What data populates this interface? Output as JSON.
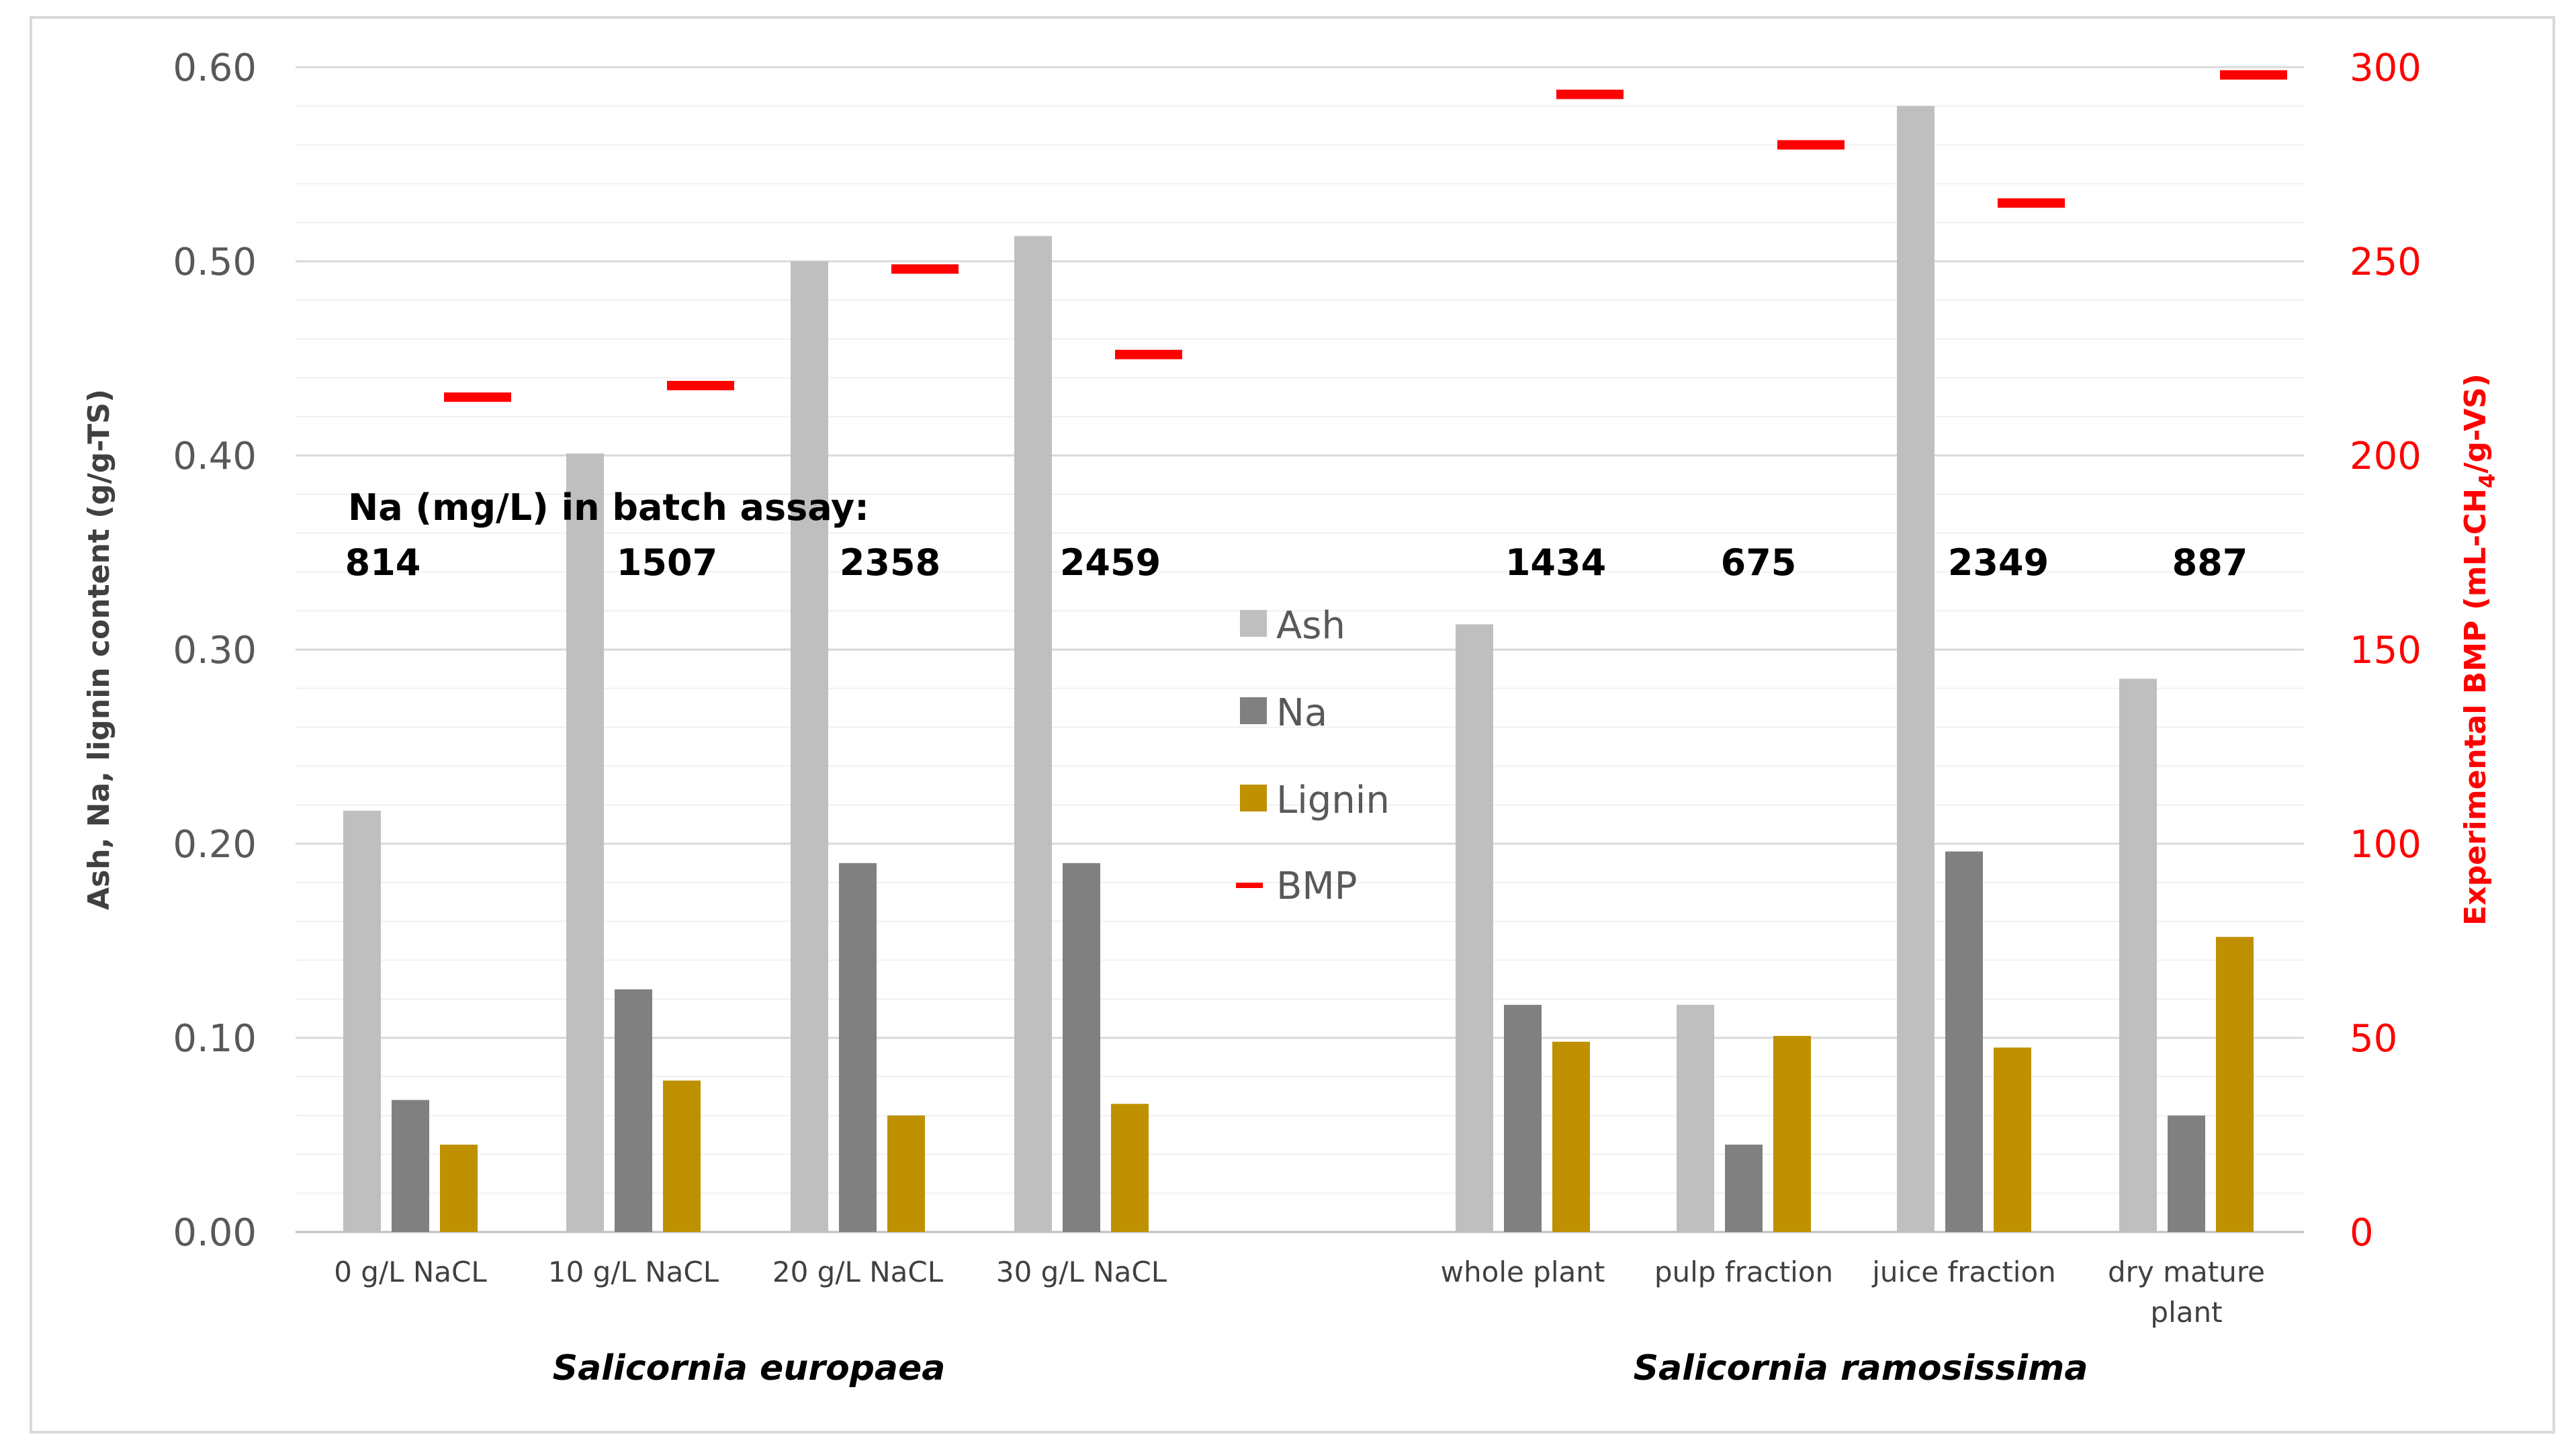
{
  "chart_data": {
    "type": "bar",
    "categories": [
      "0 g/L NaCL",
      "10 g/L NaCL",
      "20 g/L NaCL",
      "30 g/L NaCL",
      "whole plant",
      "pulp fraction",
      "juice fraction",
      "dry mature plant"
    ],
    "category_lines": [
      [
        "0 g/L NaCL"
      ],
      [
        "10 g/L NaCL"
      ],
      [
        "20 g/L NaCL"
      ],
      [
        "30 g/L NaCL"
      ],
      [
        "whole plant"
      ],
      [
        "pulp fraction"
      ],
      [
        "juice fraction"
      ],
      [
        "dry mature",
        "plant"
      ]
    ],
    "series": [
      {
        "name": "Ash",
        "color": "#bfbfbf",
        "values": [
          0.217,
          0.401,
          0.5,
          0.513,
          0.313,
          0.117,
          0.58,
          0.285
        ]
      },
      {
        "name": "Na",
        "color": "#808080",
        "values": [
          0.068,
          0.125,
          0.19,
          0.19,
          0.117,
          0.045,
          0.196,
          0.06
        ]
      },
      {
        "name": "Lignin",
        "color": "#bf9000",
        "values": [
          0.045,
          0.078,
          0.06,
          0.066,
          0.098,
          0.101,
          0.095,
          0.152
        ]
      }
    ],
    "secondary_series": {
      "name": "BMP",
      "color": "#ff0000",
      "marker": "dash",
      "values": [
        215,
        218,
        248,
        226,
        293,
        280,
        265,
        298
      ]
    },
    "na_annotation": {
      "title": "Na (mg/L) in batch assay:",
      "values": [
        "814",
        "1507",
        "2358",
        "2459",
        "1434",
        "675",
        "2349",
        "887"
      ]
    },
    "groups": [
      {
        "label": "Salicornia europaea",
        "categories": [
          0,
          1,
          2,
          3
        ]
      },
      {
        "label": "Salicornia ramosissima",
        "categories": [
          4,
          5,
          6,
          7
        ]
      }
    ],
    "ylabel": "Ash, Na, lignin content (g/g-TS)",
    "ylabel_right_parts": [
      "Experimental BMP (mL-CH",
      "4",
      "/g-VS)"
    ],
    "ylim": [
      0,
      0.6
    ],
    "yticks": [
      "0.00",
      "0.10",
      "0.20",
      "0.30",
      "0.40",
      "0.50",
      "0.60"
    ],
    "ylim_right": [
      0,
      300
    ],
    "yticks_right": [
      "0",
      "50",
      "100",
      "150",
      "200",
      "250",
      "300"
    ],
    "grid": true,
    "legend_position": "center"
  }
}
